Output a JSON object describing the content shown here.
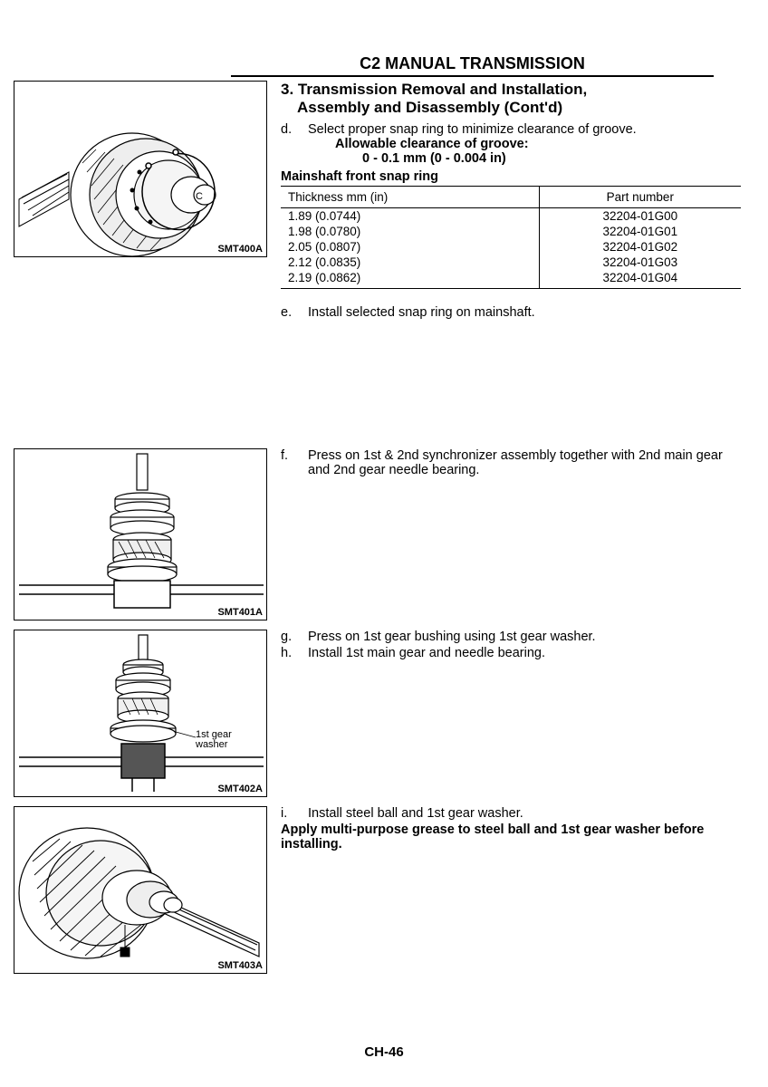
{
  "header": "C2 MANUAL TRANSMISSION",
  "section_title_line1": "3. Transmission Removal and Installation,",
  "section_title_line2": "Assembly and Disassembly (Cont'd)",
  "steps": {
    "d": {
      "letter": "d.",
      "text": "Select proper snap ring to minimize clearance of groove.",
      "sub1": "Allowable clearance of groove:",
      "sub2": "0 - 0.1 mm (0 - 0.004 in)"
    },
    "e": {
      "letter": "e.",
      "text": "Install selected snap ring on mainshaft."
    },
    "f": {
      "letter": "f.",
      "text": "Press on 1st & 2nd synchronizer assembly together with 2nd main gear and 2nd gear needle bearing."
    },
    "g": {
      "letter": "g.",
      "text": "Press on 1st gear bushing using 1st gear washer."
    },
    "h": {
      "letter": "h.",
      "text": "Install 1st main gear and needle bearing."
    },
    "i": {
      "letter": "i.",
      "text": "Install steel ball and 1st gear washer.",
      "note": "Apply multi-purpose grease to steel ball and 1st gear washer before installing."
    }
  },
  "table": {
    "title": "Mainshaft front snap ring",
    "col1": "Thickness mm (in)",
    "col2": "Part number",
    "rows": [
      {
        "thickness": "1.89 (0.0744)",
        "part": "32204-01G00"
      },
      {
        "thickness": "1.98 (0.0780)",
        "part": "32204-01G01"
      },
      {
        "thickness": "2.05 (0.0807)",
        "part": "32204-01G02"
      },
      {
        "thickness": "2.12 (0.0835)",
        "part": "32204-01G03"
      },
      {
        "thickness": "2.19 (0.0862)",
        "part": "32204-01G04"
      }
    ]
  },
  "figures": {
    "f1": {
      "code": "SMT400A"
    },
    "f2": {
      "code": "SMT401A"
    },
    "f3": {
      "code": "SMT402A",
      "label": "1st gear washer"
    },
    "f4": {
      "code": "SMT403A"
    }
  },
  "footer": "CH-46"
}
